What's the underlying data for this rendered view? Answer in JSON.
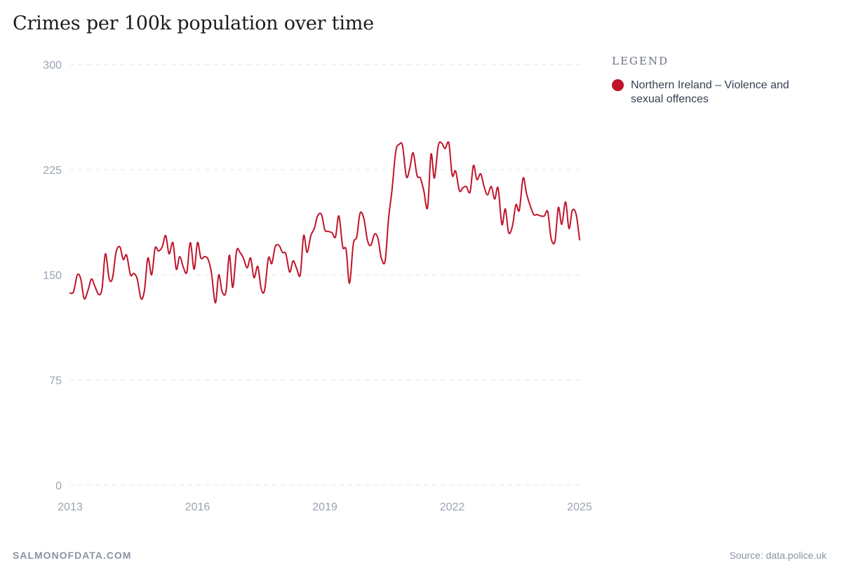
{
  "colors": {
    "series": "#c0142b",
    "grid": "#e3e6ea",
    "tick": "#9aa3b2",
    "text": "#1c1c1c"
  },
  "chart_data": {
    "type": "line",
    "title": "Crimes per 100k population over time",
    "xlabel": "",
    "ylabel": "",
    "ylim": [
      0,
      300
    ],
    "xlim": [
      2013.0,
      2025.0
    ],
    "y_ticks": [
      "0",
      "75",
      "150",
      "225",
      "300"
    ],
    "x_ticks": [
      "2013",
      "2016",
      "2019",
      "2022",
      "2025"
    ],
    "grid": true,
    "legend_title": "LEGEND",
    "legend_position": "right",
    "series": [
      {
        "name": "Northern Ireland – Violence and sexual offences",
        "color": "#c0142b",
        "x": [
          2013.0,
          2013.08,
          2013.17,
          2013.25,
          2013.33,
          2013.42,
          2013.5,
          2013.58,
          2013.67,
          2013.75,
          2013.83,
          2013.92,
          2014.0,
          2014.08,
          2014.17,
          2014.25,
          2014.33,
          2014.42,
          2014.5,
          2014.58,
          2014.67,
          2014.75,
          2014.83,
          2014.92,
          2015.0,
          2015.08,
          2015.17,
          2015.25,
          2015.33,
          2015.42,
          2015.5,
          2015.58,
          2015.67,
          2015.75,
          2015.83,
          2015.92,
          2016.0,
          2016.08,
          2016.17,
          2016.25,
          2016.33,
          2016.42,
          2016.5,
          2016.58,
          2016.67,
          2016.75,
          2016.83,
          2016.92,
          2017.0,
          2017.08,
          2017.17,
          2017.25,
          2017.33,
          2017.42,
          2017.5,
          2017.58,
          2017.67,
          2017.75,
          2017.83,
          2017.92,
          2018.0,
          2018.08,
          2018.17,
          2018.25,
          2018.33,
          2018.42,
          2018.5,
          2018.58,
          2018.67,
          2018.75,
          2018.83,
          2018.92,
          2019.0,
          2019.08,
          2019.17,
          2019.25,
          2019.33,
          2019.42,
          2019.5,
          2019.58,
          2019.67,
          2019.75,
          2019.83,
          2019.92,
          2020.0,
          2020.08,
          2020.17,
          2020.25,
          2020.33,
          2020.42,
          2020.5,
          2020.58,
          2020.67,
          2020.75,
          2020.83,
          2020.92,
          2021.0,
          2021.08,
          2021.17,
          2021.25,
          2021.33,
          2021.42,
          2021.5,
          2021.58,
          2021.67,
          2021.75,
          2021.83,
          2021.92,
          2022.0,
          2022.08,
          2022.17,
          2022.25,
          2022.33,
          2022.42,
          2022.5,
          2022.58,
          2022.67,
          2022.75,
          2022.83,
          2022.92,
          2023.0,
          2023.08,
          2023.17,
          2023.25,
          2023.33,
          2023.42,
          2023.5,
          2023.58,
          2023.67,
          2023.75,
          2023.83,
          2023.92,
          2024.0,
          2024.08,
          2024.17,
          2024.25,
          2024.33,
          2024.42,
          2024.5,
          2024.58,
          2024.67,
          2024.75,
          2024.83,
          2024.92,
          2025.0
        ],
        "values": [
          137,
          138,
          150,
          147,
          133,
          139,
          147,
          142,
          136,
          140,
          165,
          147,
          148,
          166,
          170,
          161,
          164,
          150,
          151,
          147,
          133,
          139,
          162,
          150,
          169,
          167,
          170,
          178,
          165,
          173,
          154,
          163,
          155,
          152,
          173,
          154,
          173,
          162,
          163,
          161,
          151,
          130,
          150,
          138,
          138,
          164,
          141,
          167,
          166,
          162,
          155,
          162,
          148,
          156,
          140,
          139,
          162,
          158,
          170,
          171,
          166,
          165,
          152,
          160,
          155,
          150,
          178,
          166,
          178,
          183,
          192,
          193,
          182,
          181,
          180,
          177,
          192,
          170,
          168,
          144,
          172,
          177,
          194,
          190,
          175,
          171,
          179,
          176,
          162,
          160,
          190,
          210,
          238,
          243,
          242,
          220,
          226,
          237,
          221,
          219,
          210,
          198,
          236,
          219,
          242,
          244,
          240,
          244,
          221,
          224,
          210,
          212,
          213,
          209,
          228,
          218,
          222,
          213,
          207,
          213,
          204,
          212,
          186,
          197,
          180,
          185,
          200,
          196,
          219,
          208,
          200,
          193,
          193,
          192,
          192,
          195,
          176,
          174,
          198,
          186,
          202,
          183,
          196,
          193,
          175
        ]
      }
    ]
  },
  "footer": {
    "brand": "SALMONOFDATA.COM",
    "source": "Source: data.police.uk"
  }
}
